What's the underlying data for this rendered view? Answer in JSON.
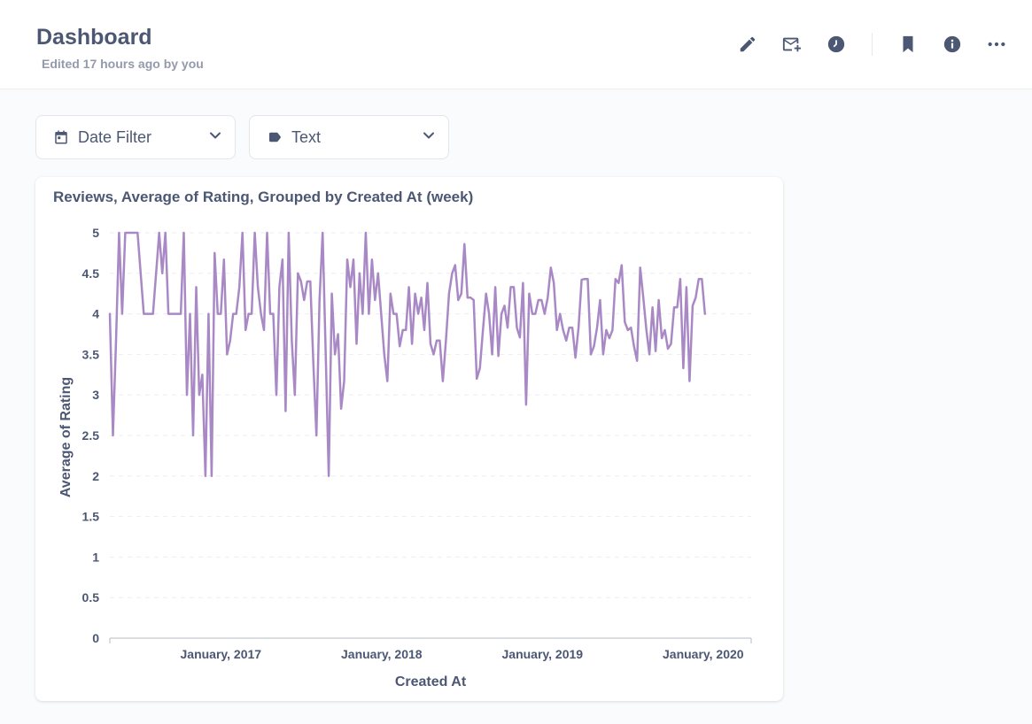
{
  "header": {
    "title": "Dashboard",
    "subtitle": "Edited 17 hours ago by you",
    "actions": [
      {
        "name": "edit-button",
        "icon": "pencil-icon"
      },
      {
        "name": "subscribe-button",
        "icon": "mail-add-icon"
      },
      {
        "name": "history-button",
        "icon": "clock-icon"
      },
      {
        "name": "bookmark-button",
        "icon": "bookmark-icon"
      },
      {
        "name": "info-button",
        "icon": "info-icon"
      },
      {
        "name": "more-button",
        "icon": "ellipsis-icon"
      }
    ]
  },
  "filters": [
    {
      "label": "Date Filter",
      "icon": "calendar-icon"
    },
    {
      "label": "Text",
      "icon": "tag-icon"
    }
  ],
  "card": {
    "title": "Reviews, Average of Rating, Grouped by Created At (week)"
  },
  "colors": {
    "series": "#a989c5",
    "text": "#4c5773",
    "muted": "#949aab"
  },
  "chart_data": {
    "type": "line",
    "title": "Reviews, Average of Rating, Grouped by Created At (week)",
    "xlabel": "Created At",
    "ylabel": "Average of Rating",
    "ylim": [
      0,
      5
    ],
    "y_ticks": [
      0,
      0.5,
      1,
      1.5,
      2,
      2.5,
      3,
      3.5,
      4,
      4.5,
      5
    ],
    "x_ticks": [
      {
        "label": "January, 2017",
        "value": "2017-01-01"
      },
      {
        "label": "January, 2018",
        "value": "2018-01-01"
      },
      {
        "label": "January, 2019",
        "value": "2019-01-01"
      },
      {
        "label": "January, 2020",
        "value": "2020-01-01"
      }
    ],
    "x_range": [
      "2016-04-24",
      "2020-04-19"
    ],
    "grid": true,
    "series": [
      {
        "start": "2016-04-24",
        "interval_days": 7,
        "values": [
          4,
          2.5,
          3.67,
          5,
          4,
          5,
          5,
          5,
          5,
          5,
          4.5,
          4,
          4,
          4,
          4,
          4.5,
          5,
          4.5,
          5,
          4,
          4,
          4,
          4,
          4,
          5,
          3,
          4,
          2.5,
          4.33,
          3,
          3.25,
          2,
          4,
          2,
          4.75,
          4,
          4,
          4.67,
          3.5,
          3.67,
          4,
          4,
          4.33,
          5,
          3.8,
          4,
          4,
          5,
          4.33,
          4,
          3.8,
          5,
          4,
          4,
          3,
          4.33,
          4.67,
          2.8,
          5,
          3.67,
          3,
          4.5,
          4.4,
          4.17,
          4.4,
          4.4,
          3.4,
          2.5,
          4.17,
          5,
          3.5,
          2,
          4.25,
          3.5,
          3.75,
          2.83,
          3.17,
          4.67,
          4.33,
          4.67,
          3.63,
          4.5,
          4,
          5,
          4,
          4.67,
          4.17,
          4.5,
          4,
          3.5,
          3.17,
          4.25,
          4,
          4,
          3.6,
          3.8,
          3.8,
          4.33,
          3.63,
          4.25,
          4,
          4.2,
          3.8,
          4.38,
          3.63,
          3.5,
          3.67,
          3.67,
          3.17,
          3.67,
          4.25,
          4.5,
          4.6,
          4.17,
          4.25,
          4.86,
          4.2,
          4.2,
          4.17,
          3.2,
          3.33,
          3.8,
          4.25,
          4,
          3.5,
          4.33,
          3.48,
          4,
          4.1,
          3.83,
          4.33,
          4.33,
          3.83,
          3.71,
          4.38,
          2.88,
          4.25,
          4,
          4,
          4.17,
          4.17,
          4,
          4.2,
          4.57,
          4.38,
          3.8,
          4,
          3.8,
          3.67,
          3.83,
          3.83,
          3.46,
          3.83,
          4.42,
          4.43,
          4.43,
          3.5,
          3.6,
          3.83,
          4.17,
          3.5,
          3.8,
          3.7,
          3.8,
          4.43,
          4.38,
          4.6,
          3.9,
          3.8,
          3.83,
          3.6,
          3.42,
          4.57,
          4.2,
          3.8,
          3.5,
          4.08,
          3.54,
          4.17,
          3.7,
          3.8,
          3.57,
          3.63,
          4.08,
          4.08,
          4.43,
          3.33,
          4.33,
          3.17,
          4.1,
          4.2,
          4.43,
          4.43,
          4
        ]
      }
    ]
  }
}
